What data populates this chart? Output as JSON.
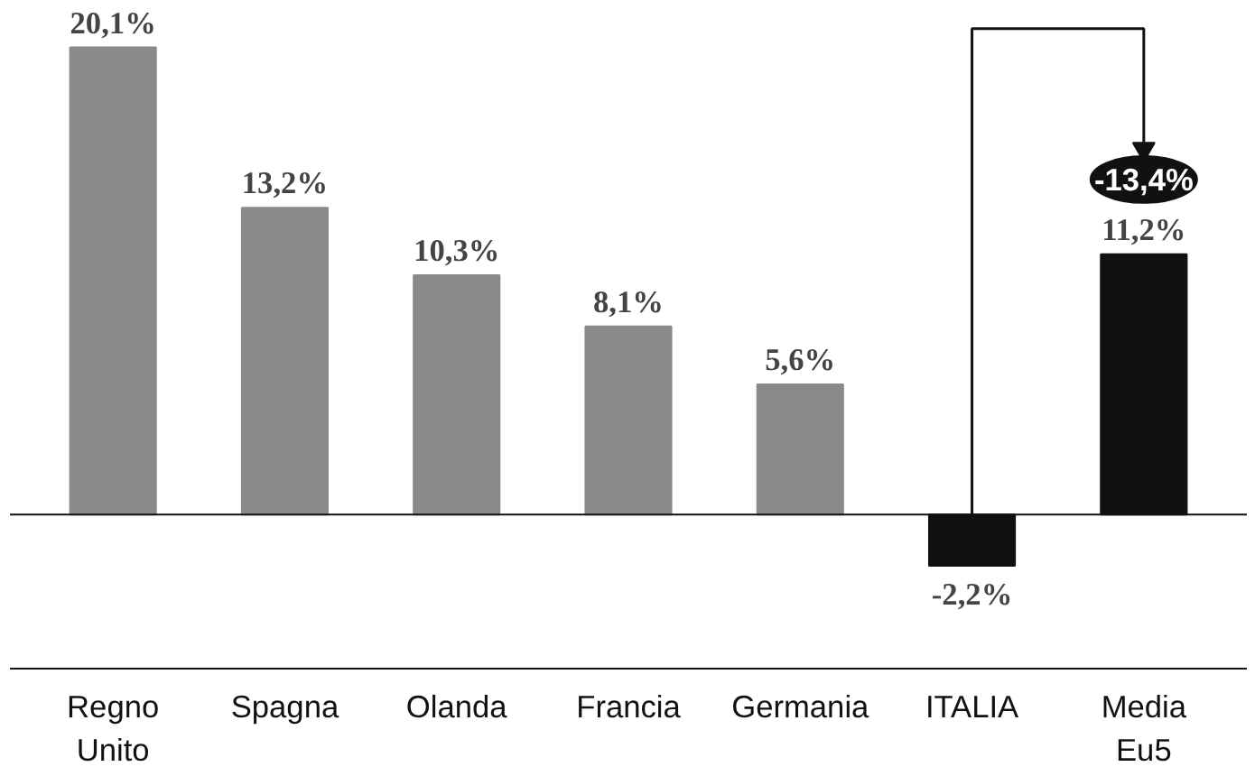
{
  "chart_data": {
    "type": "bar",
    "categories": [
      "Regno\nUnito",
      "Spagna",
      "Olanda",
      "Francia",
      "Germania",
      "ITALIA",
      "Media\nEu5"
    ],
    "values": [
      20.1,
      13.2,
      10.3,
      8.1,
      5.6,
      -2.2,
      11.2
    ],
    "colors": [
      "#8a8a8a",
      "#8a8a8a",
      "#8a8a8a",
      "#8a8a8a",
      "#8a8a8a",
      "#111111",
      "#111111"
    ],
    "value_labels": [
      "20,1%",
      "13,2%",
      "10,3%",
      "8,1%",
      "5,6%",
      "-2,2%",
      "11,2%"
    ],
    "annotations": [
      "-13,4%"
    ]
  }
}
